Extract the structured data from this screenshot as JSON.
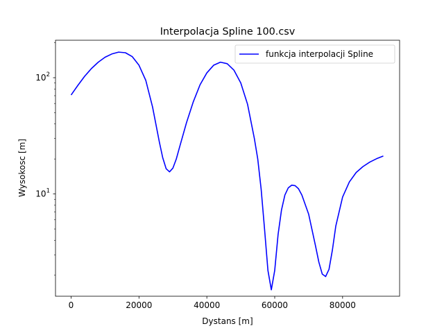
{
  "chart_data": {
    "type": "line",
    "title": "Interpolacja Spline 100.csv",
    "xlabel": "Dystans [m]",
    "ylabel": "Wysokosc [m]",
    "yscale": "log",
    "xlim": [
      -4600,
      96800
    ],
    "ylim": [
      1.32,
      210
    ],
    "grid": false,
    "legend_position": "top-right",
    "x_ticks": [
      {
        "value": 0,
        "label": "0"
      },
      {
        "value": 20000,
        "label": "20000"
      },
      {
        "value": 40000,
        "label": "40000"
      },
      {
        "value": 60000,
        "label": "60000"
      },
      {
        "value": 80000,
        "label": "80000"
      }
    ],
    "y_ticks": [
      {
        "value": 10,
        "label_base": "10",
        "label_exp": "1"
      },
      {
        "value": 100,
        "label_base": "10",
        "label_exp": "2"
      }
    ],
    "series": [
      {
        "name": "funkcja interpolacji Spline",
        "color": "#0000ff",
        "x": [
          0,
          2000,
          4000,
          6000,
          8000,
          10000,
          12000,
          14000,
          16000,
          18000,
          20000,
          22000,
          24000,
          26000,
          27000,
          28000,
          29000,
          30000,
          31000,
          32000,
          34000,
          36000,
          38000,
          40000,
          42000,
          44000,
          46000,
          48000,
          50000,
          52000,
          54000,
          55000,
          56000,
          57000,
          58000,
          59000,
          60000,
          61000,
          62000,
          63000,
          64000,
          65000,
          66000,
          67000,
          68000,
          70000,
          72000,
          73000,
          74000,
          75000,
          76000,
          77000,
          78000,
          80000,
          82000,
          84000,
          86000,
          88000,
          90000,
          92000
        ],
        "values": [
          71,
          86,
          103,
          120,
          136,
          150,
          160,
          166,
          164,
          152,
          128,
          95,
          56,
          28,
          20.5,
          16.5,
          15.5,
          16.7,
          20,
          25.5,
          41,
          62,
          87,
          110,
          128,
          136,
          132,
          116,
          90,
          59,
          30,
          20,
          11,
          5,
          2.2,
          1.5,
          2.2,
          4.5,
          7.3,
          9.8,
          11.3,
          11.9,
          11.8,
          11.1,
          9.8,
          6.7,
          3.6,
          2.6,
          2.05,
          1.95,
          2.25,
          3.3,
          5.3,
          9.4,
          12.7,
          15.3,
          17.2,
          18.8,
          20.1,
          21.2
        ]
      }
    ]
  }
}
